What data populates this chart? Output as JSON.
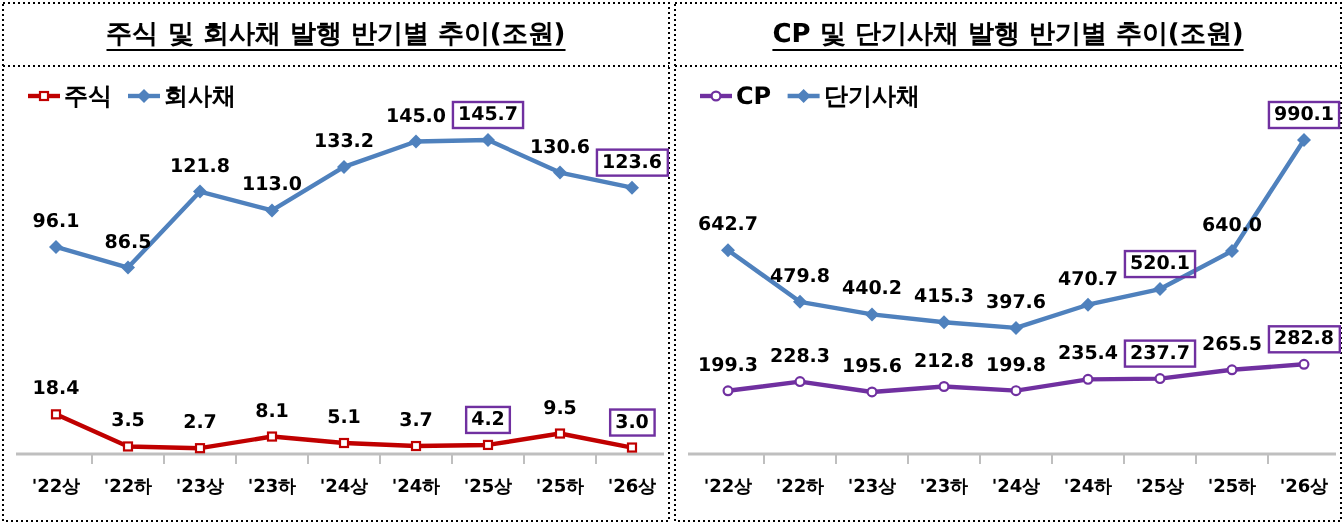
{
  "chart_data": [
    {
      "type": "line",
      "title": "주식 및 회사채 발행 반기별 추이(조원)",
      "categories": [
        "'22상",
        "'22하",
        "'23상",
        "'23하",
        "'24상",
        "'24하",
        "'25상",
        "'25하",
        "'26상"
      ],
      "legend": "top left",
      "series": [
        {
          "name": "주식",
          "color": "#c00000",
          "marker": "square",
          "values": [
            18.4,
            3.5,
            2.7,
            8.1,
            5.1,
            3.7,
            4.2,
            9.5,
            3.0
          ],
          "value_labels": [
            "18.4",
            "3.5",
            "2.7",
            "8.1",
            "5.1",
            "3.7",
            "4.2",
            "9.5",
            "3.0"
          ]
        },
        {
          "name": "회사채",
          "color": "#4f81bd",
          "marker": "diamond",
          "values": [
            96.1,
            86.5,
            121.8,
            113.0,
            133.2,
            145.0,
            145.7,
            130.6,
            123.6
          ],
          "value_labels": [
            "96.1",
            "86.5",
            "121.8",
            "113.0",
            "133.2",
            "145.0",
            "145.7",
            "130.6",
            "123.6"
          ]
        }
      ]
    },
    {
      "type": "line",
      "title": "CP 및 단기사채 발행 반기별 추이(조원)",
      "categories": [
        "'22상",
        "'22하",
        "'23상",
        "'23하",
        "'24상",
        "'24하",
        "'25상",
        "'25하",
        "'26상"
      ],
      "legend": "top left",
      "series": [
        {
          "name": "CP",
          "color": "#7030a0",
          "marker": "circle",
          "values": [
            199.3,
            228.3,
            195.6,
            212.8,
            199.8,
            235.4,
            237.7,
            265.5,
            282.8
          ],
          "value_labels": [
            "199.3",
            "228.3",
            "195.6",
            "212.8",
            "199.8",
            "235.4",
            "237.7",
            "265.5",
            "282.8"
          ]
        },
        {
          "name": "단기사채",
          "color": "#4f81bd",
          "marker": "diamond",
          "values": [
            642.7,
            479.8,
            440.2,
            415.3,
            397.6,
            470.7,
            520.1,
            640.0,
            990.1
          ],
          "value_labels": [
            "642.7",
            "479.8",
            "440.2",
            "415.3",
            "397.6",
            "470.7",
            "520.1",
            "640.0",
            "990.1"
          ]
        }
      ]
    }
  ]
}
